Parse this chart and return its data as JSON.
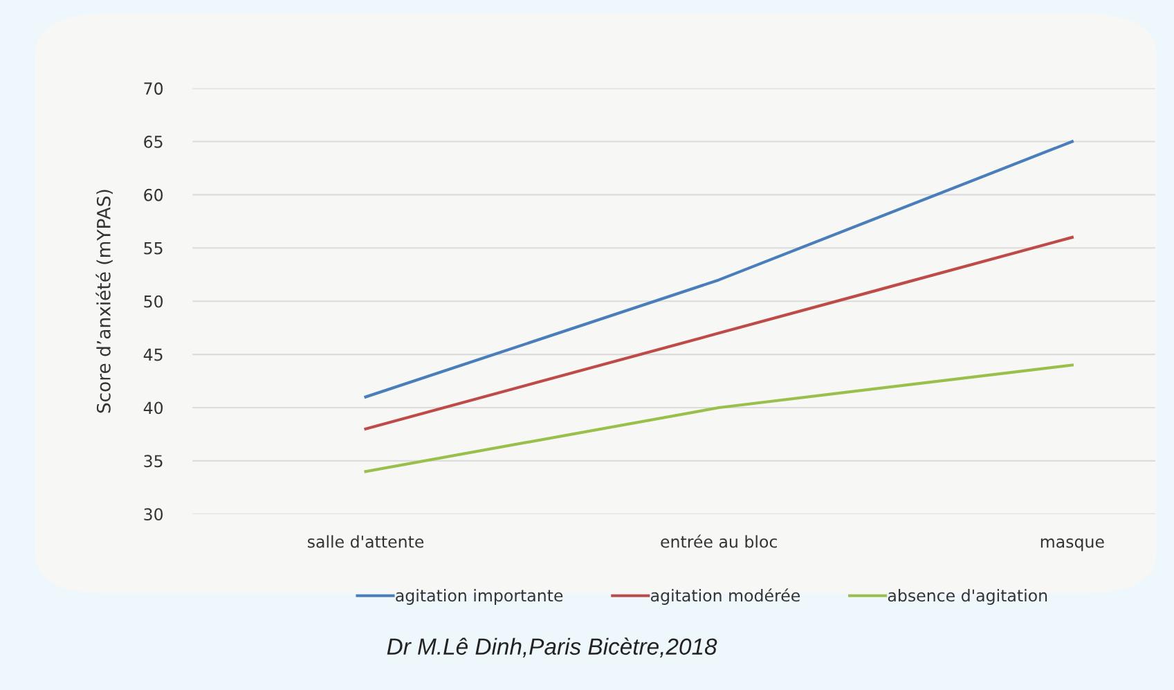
{
  "chart_data": {
    "type": "line",
    "ylabel": "Score d’anxiété (mYPAS)",
    "categories": [
      "salle d'attente",
      "entrée au bloc",
      "masque"
    ],
    "series": [
      {
        "name": "agitation importante",
        "color": "#4a7ebb",
        "values": [
          41,
          52,
          65
        ]
      },
      {
        "name": "agitation modérée",
        "color": "#be4b48",
        "values": [
          38,
          47,
          56
        ]
      },
      {
        "name": "absence d'agitation",
        "color": "#98c04a",
        "values": [
          34,
          40,
          44
        ]
      }
    ],
    "ylim": [
      30,
      70
    ],
    "yticks": [
      30,
      35,
      40,
      45,
      50,
      55,
      60,
      65,
      70
    ],
    "grid": "y",
    "legend": "bottom",
    "marker": "none",
    "line_style": "solid",
    "annotations": [
      "Dr M.Lê Dinh,Paris Bicètre,2018"
    ]
  }
}
